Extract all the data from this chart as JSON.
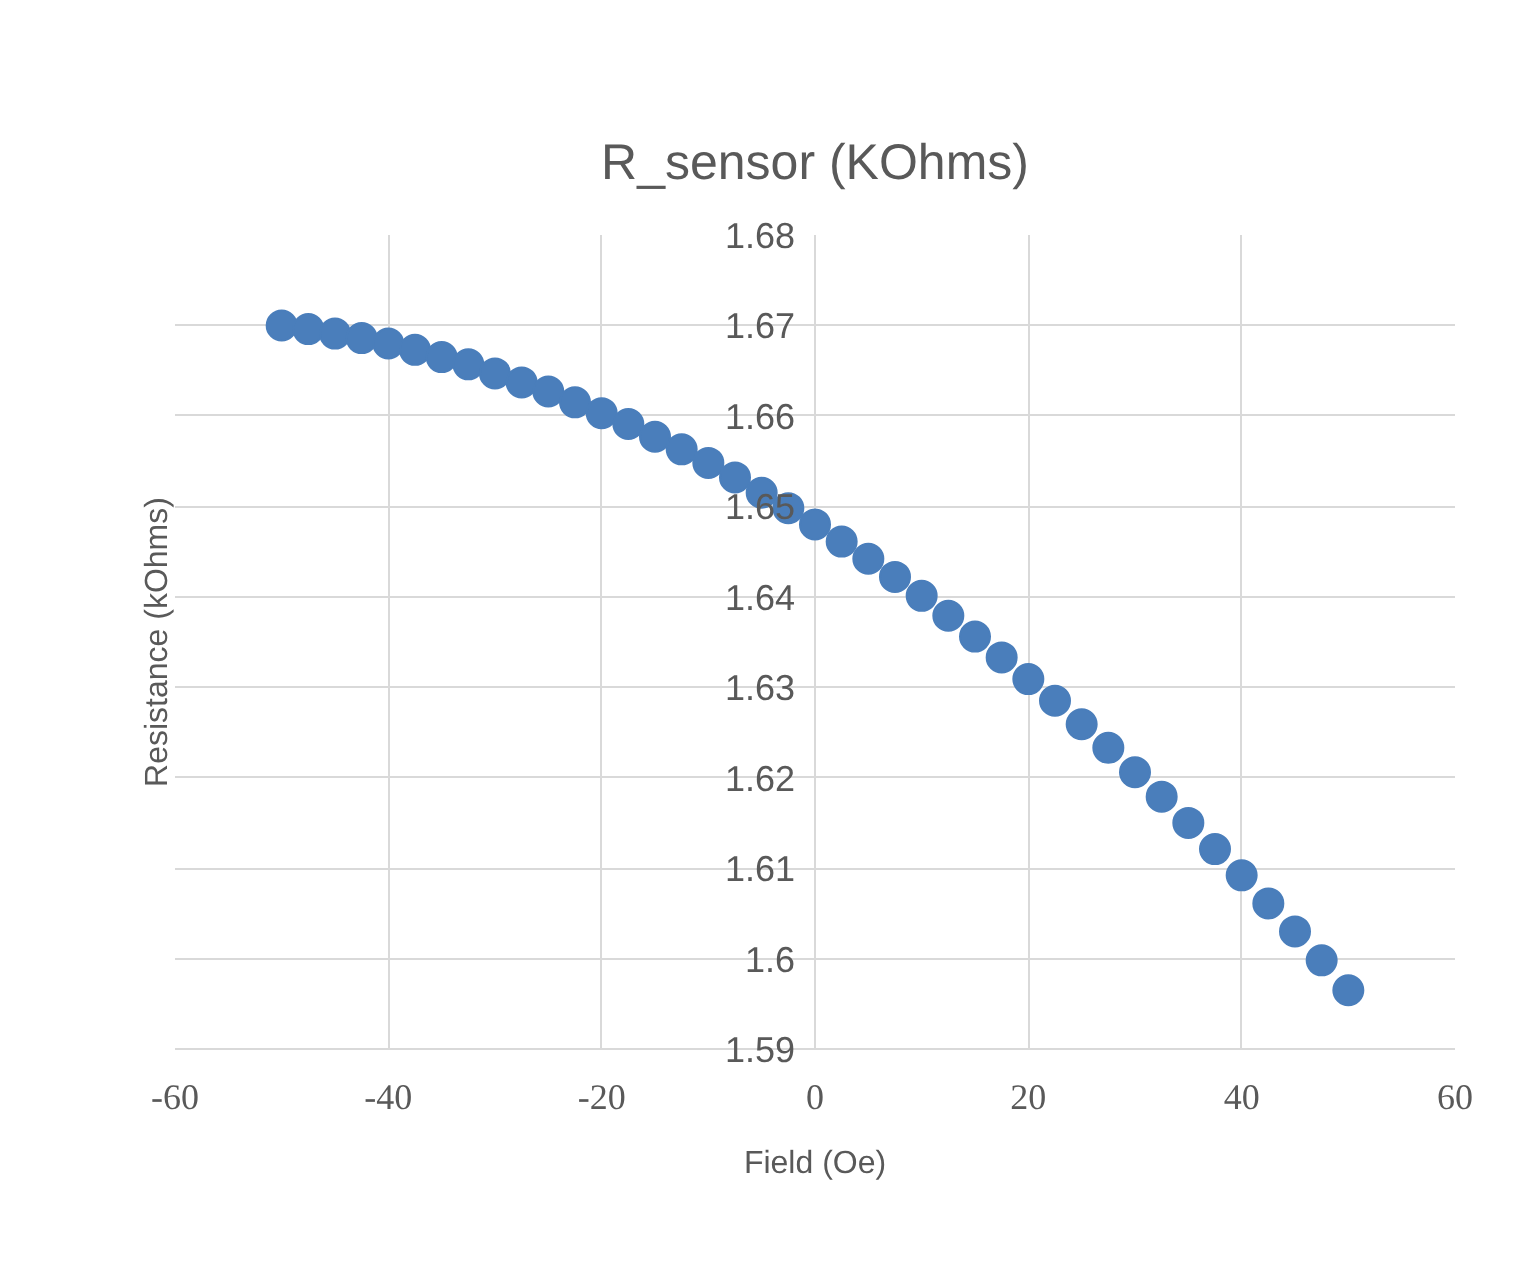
{
  "chart_data": {
    "type": "scatter",
    "title": "R_sensor (KOhms)",
    "xlabel": "Field (Oe)",
    "ylabel": "Resistance (kOhms)",
    "x": [
      -50,
      -47.5,
      -45,
      -42.5,
      -40,
      -37.5,
      -35,
      -32.5,
      -30,
      -27.5,
      -25,
      -22.5,
      -20,
      -17.5,
      -15,
      -12.5,
      -10,
      -7.5,
      -5,
      -2.5,
      0,
      2.5,
      5,
      7.5,
      10,
      12.5,
      15,
      17.5,
      20,
      22.5,
      25,
      27.5,
      30,
      32.5,
      35,
      37.5,
      40,
      42.5,
      45,
      47.5,
      50
    ],
    "series": [
      {
        "color": "#4a7ebb",
        "values": [
          1.67,
          1.6696,
          1.6691,
          1.6686,
          1.668,
          1.6673,
          1.6665,
          1.6657,
          1.6647,
          1.6637,
          1.6627,
          1.6615,
          1.6603,
          1.6591,
          1.6577,
          1.6563,
          1.6548,
          1.6532,
          1.6515,
          1.6498,
          1.648,
          1.6461,
          1.6442,
          1.6422,
          1.6401,
          1.6379,
          1.6356,
          1.6333,
          1.6309,
          1.6285,
          1.6259,
          1.6233,
          1.6206,
          1.6179,
          1.615,
          1.6121,
          1.6092,
          1.6061,
          1.603,
          1.5998,
          1.5965
        ]
      }
    ],
    "xlim": [
      -60,
      60
    ],
    "xticks": [
      -60,
      -40,
      -20,
      0,
      20,
      40,
      60
    ],
    "ylim": [
      1.59,
      1.68
    ],
    "yticks": [
      1.59,
      1.6,
      1.61,
      1.62,
      1.63,
      1.64,
      1.65,
      1.66,
      1.67,
      1.68
    ],
    "grid": true,
    "marker": "circle"
  }
}
